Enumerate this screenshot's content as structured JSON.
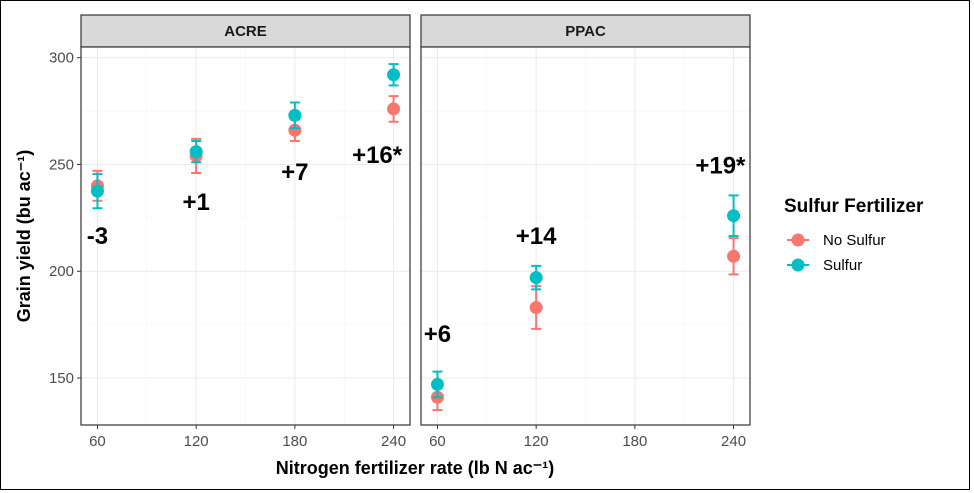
{
  "chart_data": {
    "type": "scatter",
    "xlabel": "Nitrogen fertilizer rate (lb N ac⁻¹)",
    "ylabel": "Grain yield (bu ac⁻¹)",
    "x_ticks": [
      60,
      120,
      180,
      240
    ],
    "y_ticks": [
      150,
      200,
      250,
      300
    ],
    "xlim": [
      50,
      250
    ],
    "ylim": [
      128,
      305
    ],
    "grid": true,
    "legend": {
      "title": "Sulfur Fertilizer",
      "placement": "right",
      "entries": [
        {
          "name": "No Sulfur",
          "color": "#F8766D"
        },
        {
          "name": "Sulfur",
          "color": "#00BFC4"
        }
      ]
    },
    "panels": [
      {
        "title": "ACRE",
        "series": [
          {
            "name": "No Sulfur",
            "x": [
              60,
              120,
              180,
              240
            ],
            "y": [
              240,
              254,
              266,
              276
            ],
            "err": [
              7,
              8,
              5,
              6
            ]
          },
          {
            "name": "Sulfur",
            "x": [
              60,
              120,
              180,
              240
            ],
            "y": [
              237.5,
              256,
              273,
              292
            ],
            "err": [
              8,
              5,
              6,
              5
            ]
          }
        ],
        "annotations": [
          {
            "text": "-3",
            "x": 60,
            "y": 217
          },
          {
            "text": "+1",
            "x": 120,
            "y": 233
          },
          {
            "text": "+7",
            "x": 180,
            "y": 247
          },
          {
            "text": "+16*",
            "x": 230,
            "y": 255
          }
        ]
      },
      {
        "title": "PPAC",
        "series": [
          {
            "name": "No Sulfur",
            "x": [
              60,
              120,
              240
            ],
            "y": [
              141,
              183,
              207
            ],
            "err": [
              6,
              10,
              8.5
            ]
          },
          {
            "name": "Sulfur",
            "x": [
              60,
              120,
              240
            ],
            "y": [
              147,
              197,
              226
            ],
            "err": [
              6,
              5.5,
              9.5
            ]
          }
        ],
        "annotations": [
          {
            "text": "+6",
            "x": 60,
            "y": 171
          },
          {
            "text": "+14",
            "x": 120,
            "y": 217
          },
          {
            "text": "+19*",
            "x": 232,
            "y": 250
          }
        ]
      }
    ]
  }
}
